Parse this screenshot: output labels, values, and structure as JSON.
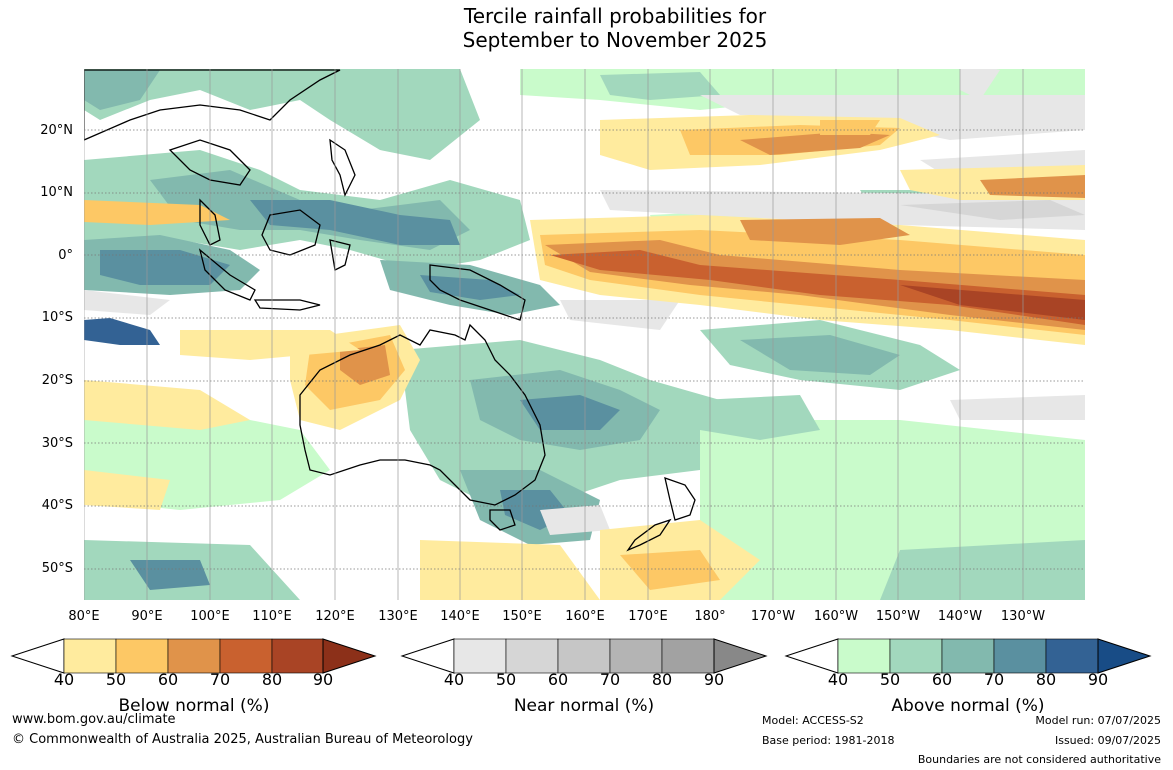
{
  "title_line1": "Tercile rainfall probabilities for",
  "title_line2": "September to November 2025",
  "lat_labels": [
    "20°N",
    "10°N",
    "0°",
    "10°S",
    "20°S",
    "30°S",
    "40°S",
    "50°S"
  ],
  "lon_labels": [
    "80°E",
    "90°E",
    "100°E",
    "110°E",
    "120°E",
    "130°E",
    "140°E",
    "150°E",
    "160°E",
    "170°E",
    "180°",
    "170°W",
    "160°W",
    "150°W",
    "140°W",
    "130°W"
  ],
  "colorbars": [
    {
      "caption": "Below normal (%)",
      "ticks": [
        "40",
        "50",
        "60",
        "70",
        "80",
        "90"
      ],
      "colors": [
        "#ffeb9e",
        "#fdc865",
        "#e0934a",
        "#c9612f",
        "#a94425",
        "#8c3019"
      ]
    },
    {
      "caption": "Near normal (%)",
      "ticks": [
        "40",
        "50",
        "60",
        "70",
        "80",
        "90"
      ],
      "colors": [
        "#e7e7e7",
        "#d6d6d6",
        "#c6c6c6",
        "#b4b4b4",
        "#a2a2a2",
        "#888888"
      ]
    },
    {
      "caption": "Above normal (%)",
      "ticks": [
        "40",
        "50",
        "60",
        "70",
        "80",
        "90"
      ],
      "colors": [
        "#c9fbcb",
        "#a2d8bd",
        "#82b9ae",
        "#5a90a0",
        "#336294",
        "#184c86"
      ]
    }
  ],
  "footer": {
    "website": "www.bom.gov.au/climate",
    "copyright": "© Commonwealth of Australia 2025, Australian Bureau of Meteorology",
    "model": "Model: ACCESS-S2",
    "base_period": "Base period: 1981-2018",
    "model_run": "Model run: 07/07/2025",
    "issued": "Issued: 09/07/2025",
    "disclaimer": "Boundaries are not considered authoritative"
  }
}
